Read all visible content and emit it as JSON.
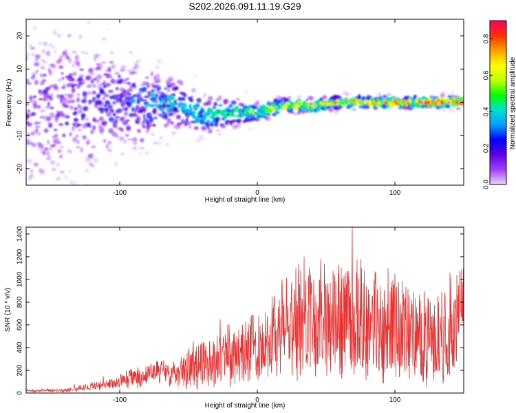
{
  "figure": {
    "title": "S202.2026.091.11.19.G29"
  },
  "colorbar": {
    "label": "Normalized spectral amplitude",
    "ticks": [
      "0.0",
      "0.2",
      "0.4",
      "0.6",
      "0.8"
    ],
    "tick_values": [
      0.0,
      0.2,
      0.4,
      0.6,
      0.8
    ],
    "range": [
      0,
      0.9
    ],
    "colormap": [
      "#e8d8ff",
      "#a040ff",
      "#6000e0",
      "#0000ff",
      "#00a0ff",
      "#00e0d0",
      "#00ff00",
      "#c0ff00",
      "#ffff00",
      "#ffa000",
      "#ff3000",
      "#ff0060"
    ]
  },
  "chart_data": [
    {
      "type": "heatmap",
      "xlabel": "Height of straight line (km)",
      "ylabel": "Frequency (Hz)",
      "xlim": [
        -168,
        150
      ],
      "ylim": [
        -25,
        25
      ],
      "xticks": [
        -100,
        0,
        100
      ],
      "xtick_labels": [
        "-100",
        "0",
        "100"
      ],
      "yticks": [
        -20,
        -10,
        0,
        10,
        20
      ],
      "ytick_labels": [
        "-20",
        "-10",
        "0",
        "10",
        "20"
      ],
      "grid": false,
      "ridge": {
        "x": [
          -168,
          -140,
          -120,
          -100,
          -80,
          -60,
          -40,
          -20,
          0,
          20,
          40,
          60,
          80,
          100,
          120,
          150
        ],
        "y_center": [
          -2,
          -1,
          -1,
          0,
          -1,
          0,
          -4,
          -3,
          -3,
          -1,
          -1,
          0,
          0,
          0,
          0,
          0
        ],
        "spread_hz": [
          22,
          20,
          17,
          14,
          10,
          7,
          5,
          3.5,
          2.5,
          2,
          1.8,
          1.6,
          1.6,
          1.5,
          1.5,
          1.5
        ],
        "peak_amplitude": [
          0.15,
          0.18,
          0.2,
          0.22,
          0.28,
          0.35,
          0.4,
          0.45,
          0.5,
          0.6,
          0.65,
          0.7,
          0.72,
          0.75,
          0.78,
          0.8
        ]
      }
    },
    {
      "type": "line",
      "xlabel": "Height of straight line (km)",
      "ylabel": "SNR (10 * v/v)",
      "xlim": [
        -168,
        150
      ],
      "ylim": [
        0,
        1460
      ],
      "xticks": [
        -100,
        0,
        100
      ],
      "xtick_labels": [
        "-100",
        "0",
        "100"
      ],
      "yticks": [
        0,
        200,
        400,
        600,
        800,
        1000,
        1200,
        1400
      ],
      "ytick_labels": [
        "0",
        "200",
        "400",
        "600",
        "800",
        "1000",
        "1200",
        "1400"
      ],
      "grid": false,
      "series": [
        {
          "color": "#ee3030",
          "x": [
            -168,
            -140,
            -130,
            -120,
            -110,
            -100,
            -90,
            -80,
            -70,
            -60,
            -50,
            -40,
            -30,
            -20,
            -10,
            0,
            10,
            20,
            30,
            40,
            50,
            60,
            70,
            80,
            90,
            100,
            110,
            120,
            130,
            140,
            150
          ],
          "y": [
            20,
            25,
            40,
            60,
            70,
            110,
            140,
            170,
            190,
            200,
            230,
            260,
            290,
            320,
            360,
            420,
            480,
            560,
            600,
            620,
            600,
            650,
            610,
            640,
            560,
            580,
            520,
            480,
            450,
            600,
            620
          ],
          "peaks": [
            {
              "x": -133,
              "y": 80
            },
            {
              "x": -112,
              "y": 150
            },
            {
              "x": -27,
              "y": 650
            },
            {
              "x": 18,
              "y": 1000
            },
            {
              "x": 30,
              "y": 1140
            },
            {
              "x": 34,
              "y": 1200
            },
            {
              "x": 46,
              "y": 1180
            },
            {
              "x": 61,
              "y": 1100
            },
            {
              "x": 69,
              "y": 1460
            },
            {
              "x": 75,
              "y": 1180
            },
            {
              "x": 95,
              "y": 1100
            },
            {
              "x": 100,
              "y": 1050
            },
            {
              "x": 140,
              "y": 1060
            },
            {
              "x": 148,
              "y": 720
            }
          ]
        }
      ]
    }
  ]
}
